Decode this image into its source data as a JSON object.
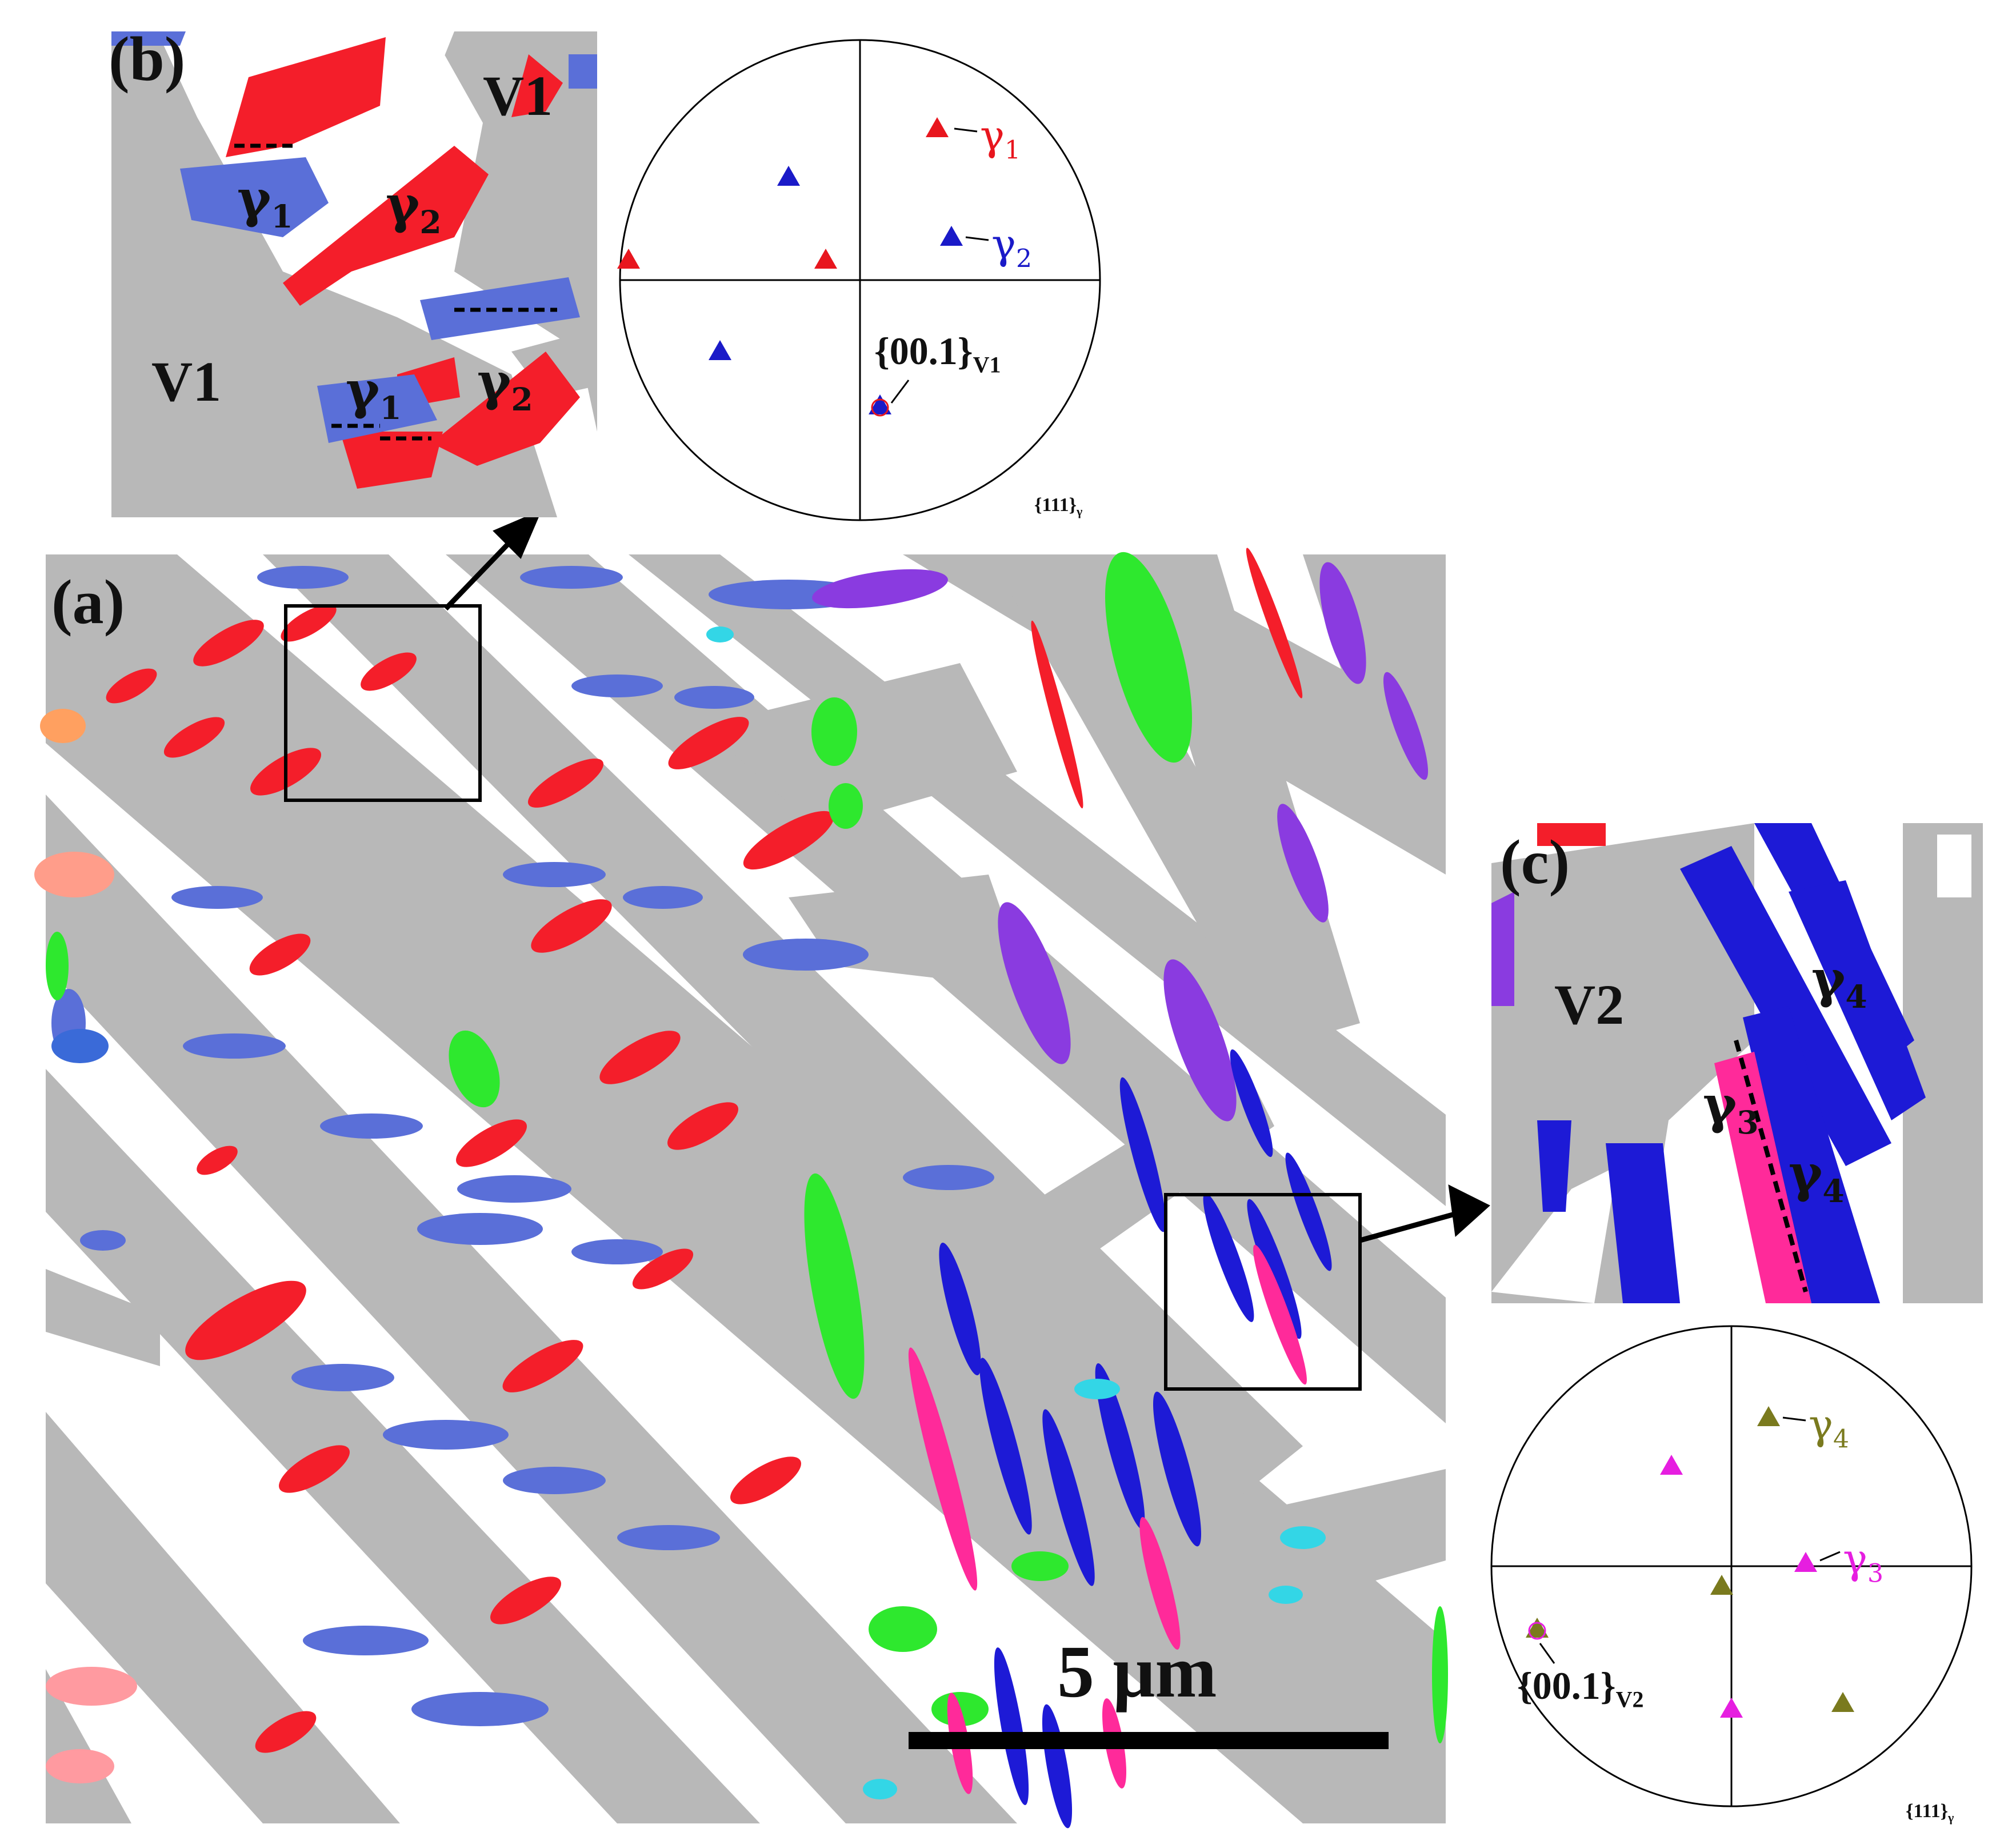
{
  "figure": {
    "panel_a": {
      "label": "(a)",
      "scale_bar": "5 μm",
      "colors": {
        "martensite": "#b8b8b8",
        "background": "#ffffff",
        "red": "#f41e2a",
        "blue": "#5a6fd8",
        "green": "#2ee82e",
        "purple": "#8a3be0",
        "magenta": "#ff2a9a",
        "darkblue": "#1d1ad6",
        "cyan": "#33d6e6"
      }
    },
    "panel_b": {
      "label": "(b)",
      "phase_labels": [
        "V1",
        "V1"
      ],
      "gamma_labels": [
        {
          "base": "γ",
          "sub": "1"
        },
        {
          "base": "γ",
          "sub": "2"
        },
        {
          "base": "γ",
          "sub": "1"
        },
        {
          "base": "γ",
          "sub": "2"
        }
      ]
    },
    "pole_figure_b": {
      "projection": "{111}",
      "projection_sub": "γ",
      "annot_gamma1": {
        "base": "γ",
        "sub": "1",
        "color": "#e8161e"
      },
      "annot_gamma2": {
        "base": "γ",
        "sub": "2",
        "color": "#1a1ac8"
      },
      "annot_pole": {
        "text": "{00.1}",
        "sub": "V1"
      }
    },
    "panel_c": {
      "label": "(c)",
      "phase_labels": [
        "V2"
      ],
      "gamma_labels": [
        {
          "base": "γ",
          "sub": "4"
        },
        {
          "base": "γ",
          "sub": "3"
        },
        {
          "base": "γ",
          "sub": "4"
        }
      ]
    },
    "pole_figure_c": {
      "projection": "{111}",
      "projection_sub": "γ",
      "annot_gamma4": {
        "base": "γ",
        "sub": "4",
        "color": "#7a7a1e"
      },
      "annot_gamma3": {
        "base": "γ",
        "sub": "3",
        "color": "#e61ee0"
      },
      "annot_pole": {
        "text": "{00.1}",
        "sub": "V2"
      }
    }
  }
}
